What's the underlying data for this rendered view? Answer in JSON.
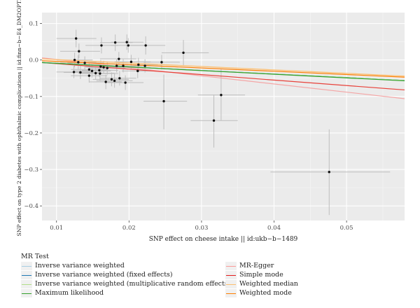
{
  "chart_data": {
    "type": "scatter",
    "xlabel": "SNP effect on cheese intake || id:ukb−b−1489",
    "ylabel": "SNP effect on type 2 diabetes with ophthalmic complications || id:finn−b−E4_DM2OPTH",
    "xlim": [
      0.008,
      0.058
    ],
    "ylim": [
      -0.44,
      0.13
    ],
    "x_ticks": [
      0.01,
      0.02,
      0.03,
      0.04,
      0.05
    ],
    "x_tick_labels": [
      "0.01",
      "0.02",
      "0.03",
      "0.04",
      "0.05"
    ],
    "y_ticks": [
      0.1,
      0.0,
      -0.1,
      -0.2,
      -0.3,
      -0.4
    ],
    "y_tick_labels": [
      "0.1",
      "0.0",
      "−0.1",
      "−0.2",
      "−0.3",
      "−0.4"
    ],
    "grid": true,
    "legend_position": "bottom",
    "points": [
      {
        "x": 0.0127,
        "y": 0.059,
        "x_lo": 0.01,
        "x_hi": 0.0155,
        "y_lo": 0.035,
        "y_hi": 0.083
      },
      {
        "x": 0.0131,
        "y": 0.024,
        "x_lo": 0.0105,
        "x_hi": 0.016,
        "y_lo": 0.005,
        "y_hi": 0.045
      },
      {
        "x": 0.0125,
        "y": 0.0,
        "x_lo": 0.01,
        "x_hi": 0.015,
        "y_lo": -0.02,
        "y_hi": 0.02
      },
      {
        "x": 0.013,
        "y": -0.006,
        "x_lo": 0.0105,
        "x_hi": 0.0155,
        "y_lo": -0.025,
        "y_hi": 0.013
      },
      {
        "x": 0.0124,
        "y": -0.033,
        "x_lo": 0.01,
        "x_hi": 0.015,
        "y_lo": -0.05,
        "y_hi": -0.016
      },
      {
        "x": 0.0133,
        "y": -0.034,
        "x_lo": 0.011,
        "x_hi": 0.016,
        "y_lo": -0.052,
        "y_hi": -0.016
      },
      {
        "x": 0.0139,
        "y": -0.008,
        "x_lo": 0.0115,
        "x_hi": 0.0165,
        "y_lo": -0.026,
        "y_hi": 0.01
      },
      {
        "x": 0.0145,
        "y": -0.043,
        "x_lo": 0.012,
        "x_hi": 0.017,
        "y_lo": -0.062,
        "y_hi": -0.024
      },
      {
        "x": 0.0145,
        "y": -0.026,
        "x_lo": 0.012,
        "x_hi": 0.017,
        "y_lo": -0.044,
        "y_hi": -0.008
      },
      {
        "x": 0.0149,
        "y": -0.03,
        "x_lo": 0.0125,
        "x_hi": 0.0175,
        "y_lo": -0.048,
        "y_hi": -0.012
      },
      {
        "x": 0.0154,
        "y": -0.036,
        "x_lo": 0.013,
        "x_hi": 0.018,
        "y_lo": -0.054,
        "y_hi": -0.018
      },
      {
        "x": 0.0159,
        "y": -0.028,
        "x_lo": 0.0135,
        "x_hi": 0.0185,
        "y_lo": -0.046,
        "y_hi": -0.01
      },
      {
        "x": 0.016,
        "y": -0.037,
        "x_lo": 0.0135,
        "x_hi": 0.0185,
        "y_lo": -0.056,
        "y_hi": -0.018
      },
      {
        "x": 0.0161,
        "y": -0.018,
        "x_lo": 0.014,
        "x_hi": 0.0185,
        "y_lo": -0.036,
        "y_hi": 0.0
      },
      {
        "x": 0.0162,
        "y": 0.04,
        "x_lo": 0.014,
        "x_hi": 0.0185,
        "y_lo": 0.018,
        "y_hi": 0.062
      },
      {
        "x": 0.0165,
        "y": -0.02,
        "x_lo": 0.014,
        "x_hi": 0.019,
        "y_lo": -0.038,
        "y_hi": -0.002
      },
      {
        "x": 0.0168,
        "y": -0.06,
        "x_lo": 0.0145,
        "x_hi": 0.019,
        "y_lo": -0.08,
        "y_hi": -0.04
      },
      {
        "x": 0.017,
        "y": -0.022,
        "x_lo": 0.0145,
        "x_hi": 0.0195,
        "y_lo": -0.04,
        "y_hi": -0.004
      },
      {
        "x": 0.0176,
        "y": -0.053,
        "x_lo": 0.015,
        "x_hi": 0.02,
        "y_lo": -0.072,
        "y_hi": -0.034
      },
      {
        "x": 0.018,
        "y": -0.057,
        "x_lo": 0.0155,
        "x_hi": 0.0205,
        "y_lo": -0.076,
        "y_hi": -0.038
      },
      {
        "x": 0.0181,
        "y": 0.048,
        "x_lo": 0.016,
        "x_hi": 0.0205,
        "y_lo": 0.025,
        "y_hi": 0.07
      },
      {
        "x": 0.0183,
        "y": -0.016,
        "x_lo": 0.016,
        "x_hi": 0.021,
        "y_lo": -0.034,
        "y_hi": 0.002
      },
      {
        "x": 0.0186,
        "y": 0.003,
        "x_lo": 0.016,
        "x_hi": 0.021,
        "y_lo": -0.016,
        "y_hi": 0.022
      },
      {
        "x": 0.0187,
        "y": -0.05,
        "x_lo": 0.016,
        "x_hi": 0.021,
        "y_lo": -0.07,
        "y_hi": -0.03
      },
      {
        "x": 0.0192,
        "y": -0.016,
        "x_lo": 0.0165,
        "x_hi": 0.0215,
        "y_lo": -0.034,
        "y_hi": 0.002
      },
      {
        "x": 0.0195,
        "y": -0.062,
        "x_lo": 0.017,
        "x_hi": 0.022,
        "y_lo": -0.082,
        "y_hi": -0.042
      },
      {
        "x": 0.0197,
        "y": 0.049,
        "x_lo": 0.0175,
        "x_hi": 0.022,
        "y_lo": 0.028,
        "y_hi": 0.07
      },
      {
        "x": 0.0199,
        "y": 0.04,
        "x_lo": 0.0175,
        "x_hi": 0.0225,
        "y_lo": 0.02,
        "y_hi": 0.06
      },
      {
        "x": 0.0203,
        "y": -0.005,
        "x_lo": 0.018,
        "x_hi": 0.023,
        "y_lo": -0.024,
        "y_hi": 0.014
      },
      {
        "x": 0.0212,
        "y": -0.03,
        "x_lo": 0.019,
        "x_hi": 0.0235,
        "y_lo": -0.05,
        "y_hi": -0.01
      },
      {
        "x": 0.0213,
        "y": -0.013,
        "x_lo": 0.019,
        "x_hi": 0.024,
        "y_lo": -0.032,
        "y_hi": 0.006
      },
      {
        "x": 0.0223,
        "y": 0.04,
        "x_lo": 0.02,
        "x_hi": 0.025,
        "y_lo": 0.015,
        "y_hi": 0.065
      },
      {
        "x": 0.0222,
        "y": -0.016,
        "x_lo": 0.02,
        "x_hi": 0.0245,
        "y_lo": -0.034,
        "y_hi": 0.002
      },
      {
        "x": 0.0245,
        "y": -0.006,
        "x_lo": 0.022,
        "x_hi": 0.027,
        "y_lo": -0.026,
        "y_hi": 0.014
      },
      {
        "x": 0.0248,
        "y": -0.113,
        "x_lo": 0.022,
        "x_hi": 0.028,
        "y_lo": -0.19,
        "y_hi": -0.04
      },
      {
        "x": 0.0275,
        "y": 0.02,
        "x_lo": 0.0245,
        "x_hi": 0.031,
        "y_lo": -0.015,
        "y_hi": 0.055
      },
      {
        "x": 0.0317,
        "y": -0.166,
        "x_lo": 0.0285,
        "x_hi": 0.035,
        "y_lo": -0.24,
        "y_hi": -0.095
      },
      {
        "x": 0.0327,
        "y": -0.096,
        "x_lo": 0.0295,
        "x_hi": 0.036,
        "y_lo": -0.165,
        "y_hi": -0.025
      },
      {
        "x": 0.0476,
        "y": -0.307,
        "x_lo": 0.0395,
        "x_hi": 0.056,
        "y_lo": -0.425,
        "y_hi": -0.19
      }
    ],
    "lines": [
      {
        "name": "MR-Egger",
        "x": [
          0.008,
          0.058
        ],
        "y": [
          0.006,
          -0.106
        ],
        "color": "#f4a6a6"
      },
      {
        "name": "Simple mode",
        "x": [
          0.008,
          0.058
        ],
        "y": [
          -0.007,
          -0.082
        ],
        "color": "#e8413a"
      },
      {
        "name": "Inverse variance weighted",
        "x": [
          0.008,
          0.058
        ],
        "y": [
          -0.007,
          -0.056
        ],
        "color": "#a6cee3"
      },
      {
        "name": "Inverse variance weighted (fixed effects)",
        "x": [
          0.008,
          0.058
        ],
        "y": [
          -0.007,
          -0.056
        ],
        "color": "#1f78b4"
      },
      {
        "name": "Inverse variance weighted (multiplicative random effects)",
        "x": [
          0.008,
          0.058
        ],
        "y": [
          -0.007,
          -0.056
        ],
        "color": "#b2df8a"
      },
      {
        "name": "Maximum likelihood",
        "x": [
          0.008,
          0.058
        ],
        "y": [
          -0.007,
          -0.057
        ],
        "color": "#33a02c"
      },
      {
        "name": "Weighted median",
        "x": [
          0.008,
          0.058
        ],
        "y": [
          0.003,
          -0.044
        ],
        "color": "#fdbf6f"
      },
      {
        "name": "Weighted mode",
        "x": [
          0.008,
          0.058
        ],
        "y": [
          -0.002,
          -0.047
        ],
        "color": "#ff7f00"
      }
    ],
    "legend": {
      "title": "MR Test",
      "items": [
        {
          "label": "Inverse variance weighted",
          "color": "#a6cee3"
        },
        {
          "label": "Inverse variance weighted (fixed effects)",
          "color": "#1f78b4"
        },
        {
          "label": "Inverse variance weighted (multiplicative random effects)",
          "color": "#b2df8a"
        },
        {
          "label": "Maximum likelihood",
          "color": "#33a02c"
        },
        {
          "label": "MR-Egger",
          "color": "#fb9a99"
        },
        {
          "label": "Simple mode",
          "color": "#e31a1c"
        },
        {
          "label": "Weighted median",
          "color": "#fdbf6f"
        },
        {
          "label": "Weighted mode",
          "color": "#ff7f00"
        }
      ]
    }
  }
}
